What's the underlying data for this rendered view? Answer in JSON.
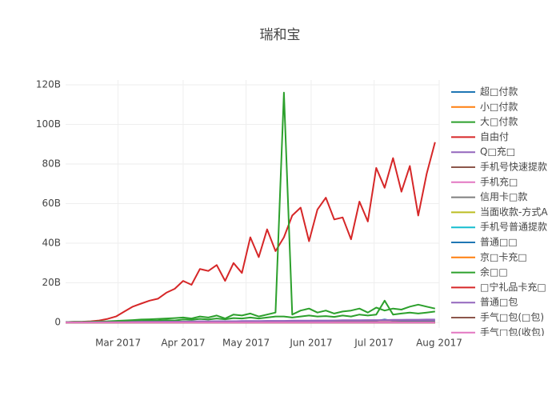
{
  "chart_data": {
    "type": "line",
    "title": "瑞和宝",
    "x": [
      0,
      4,
      8,
      12,
      16,
      20,
      24,
      28,
      32,
      36,
      40,
      44,
      48,
      52,
      56,
      60,
      64,
      68,
      72,
      76,
      80,
      84,
      88,
      92,
      96,
      100,
      104,
      108,
      112,
      116,
      120,
      124,
      128,
      132,
      136,
      140,
      144,
      148,
      152,
      156,
      160,
      164,
      168,
      172,
      176
    ],
    "xlim": [
      0,
      178
    ],
    "xticks": [
      {
        "value": 25,
        "label": "Mar 2017"
      },
      {
        "value": 56,
        "label": "Apr 2017"
      },
      {
        "value": 86,
        "label": "May 2017"
      },
      {
        "value": 117,
        "label": "Jun 2017"
      },
      {
        "value": 147,
        "label": "Jul 2017"
      },
      {
        "value": 178,
        "label": "Aug 2017"
      }
    ],
    "ylim": [
      -2.8,
      122.4
    ],
    "yticks": [
      {
        "value": 0,
        "label": "0"
      },
      {
        "value": 20,
        "label": "20B"
      },
      {
        "value": 40,
        "label": "40B"
      },
      {
        "value": 60,
        "label": "60B"
      },
      {
        "value": 80,
        "label": "80B"
      },
      {
        "value": 100,
        "label": "100B"
      },
      {
        "value": 120,
        "label": "120B"
      }
    ],
    "grid": true,
    "legend": "right",
    "series": [
      {
        "name": "超□付款",
        "color": "#1f77b4",
        "values": [
          0.2,
          0.2,
          0.2,
          0.2,
          0.2,
          0.2,
          0.3,
          0.3,
          0.3,
          0.3,
          0.3,
          0.3,
          0.4,
          0.4,
          0.4,
          0.4,
          0.4,
          0.4,
          0.5,
          0.5,
          0.5,
          0.5,
          0.5,
          0.5,
          0.6,
          0.6,
          0.6,
          0.6,
          0.6,
          0.6,
          0.7,
          0.7,
          0.7,
          0.7,
          0.7,
          0.7,
          0.8,
          0.8,
          1.5,
          0.8,
          0.8,
          0.8,
          0.8,
          0.8,
          0.8
        ]
      },
      {
        "name": "小□付款",
        "color": "#ff7f0e",
        "values": [
          0,
          0,
          0,
          0,
          0,
          0,
          0,
          0,
          0,
          0,
          0.1,
          0.1,
          0.1,
          0.1,
          0.1,
          0.1,
          0.1,
          0.1,
          0.1,
          0.1,
          0.1,
          0.1,
          0.1,
          0.1,
          0.1,
          0.1,
          0.1,
          0.1,
          0.1,
          0.1,
          0.1,
          0.1,
          0.1,
          0.1,
          0.1,
          0.1,
          0.1,
          0.1,
          0.1,
          0.1,
          0.1,
          0.1,
          0.1,
          0.1,
          0.1
        ]
      },
      {
        "name": "大□付款",
        "color": "#2ca02c",
        "values": [
          0.1,
          0.1,
          0.2,
          0.2,
          0.3,
          0.3,
          0.4,
          0.5,
          0.6,
          0.8,
          0.9,
          1.0,
          1.2,
          1.0,
          1.5,
          1.3,
          1.8,
          1.5,
          2.0,
          1.6,
          2.2,
          2.0,
          2.5,
          2.0,
          2.5,
          3.0,
          3.0,
          2.5,
          3.0,
          3.5,
          3.0,
          3.2,
          2.8,
          3.5,
          3.0,
          4.0,
          3.5,
          4.0,
          11.0,
          4.0,
          4.5,
          5.0,
          4.5,
          5.0,
          5.5
        ]
      },
      {
        "name": "自由付",
        "color": "#d62728",
        "values": [
          0.2,
          0.3,
          0.4,
          0.6,
          1.0,
          1.8,
          3.0,
          5.5,
          8.0,
          9.5,
          11,
          12,
          15,
          17,
          21,
          19,
          27,
          26,
          29,
          21,
          30,
          25,
          43,
          33,
          47,
          36,
          43,
          54,
          58,
          41,
          57,
          63,
          52,
          53,
          42,
          61,
          51,
          78,
          68,
          83,
          66,
          79,
          54,
          75,
          91
        ]
      },
      {
        "name": "Q□充□",
        "color": "#9467bd",
        "values": [
          0,
          0,
          0,
          0.1,
          0.1,
          0.1,
          0.2,
          0.2,
          0.2,
          0.3,
          0.3,
          0.3,
          0.4,
          0.4,
          0.4,
          0.5,
          0.5,
          0.5,
          0.6,
          0.6,
          0.6,
          0.7,
          0.7,
          0.7,
          0.8,
          0.8,
          0.8,
          0.9,
          0.9,
          0.9,
          1.0,
          1.0,
          1.0,
          1.1,
          1.1,
          1.1,
          1.2,
          1.2,
          1.2,
          1.3,
          1.3,
          1.4,
          1.4,
          1.5,
          1.5
        ]
      },
      {
        "name": "手机号快速提款",
        "color": "#8c564b",
        "values": [
          0,
          0,
          0,
          0,
          0,
          0,
          0,
          0,
          0,
          0,
          0,
          0,
          0,
          0,
          0,
          0,
          0,
          0,
          0,
          0,
          0,
          0,
          0,
          0,
          0,
          0,
          0,
          0,
          0,
          0,
          0,
          0,
          0,
          0,
          0,
          0,
          0,
          0,
          0,
          0,
          0,
          0,
          0,
          0,
          0
        ]
      },
      {
        "name": "手机充□",
        "color": "#e377c2",
        "values": [
          0,
          0,
          0,
          0,
          0,
          0,
          0,
          0,
          0,
          0,
          0,
          0,
          0,
          0,
          0,
          0,
          0,
          0,
          0,
          0,
          0,
          0,
          0,
          0,
          0,
          0,
          0,
          0,
          0,
          0,
          0,
          0,
          0,
          0,
          0,
          0,
          0,
          0,
          0,
          0,
          0,
          0,
          0,
          0,
          0
        ]
      },
      {
        "name": "信用卡□款",
        "color": "#7f7f7f",
        "values": [
          0,
          0,
          0,
          0,
          0,
          0,
          0,
          0,
          0,
          0,
          0,
          0,
          0,
          0,
          0,
          0,
          0,
          0,
          0,
          0,
          0,
          0,
          0,
          0,
          0,
          0,
          0,
          0,
          0,
          0,
          0,
          0,
          0,
          0,
          0,
          0,
          0,
          0,
          0,
          0,
          0,
          0,
          0,
          0,
          0
        ]
      },
      {
        "name": "当面收款-方式A",
        "color": "#bcbd22",
        "values": [
          0,
          0,
          0,
          0,
          0,
          0,
          0,
          0,
          0,
          0,
          0,
          0,
          0,
          0,
          0,
          0,
          0,
          0,
          0,
          0,
          0,
          0,
          0,
          0,
          0,
          0,
          0,
          0,
          0,
          0,
          0,
          0,
          0,
          0,
          0,
          0,
          0,
          0,
          0,
          0,
          0,
          0,
          0,
          0,
          0
        ]
      },
      {
        "name": "手机号普通提款",
        "color": "#17becf",
        "values": [
          0,
          0,
          0,
          0,
          0,
          0,
          0,
          0,
          0,
          0,
          0,
          0,
          0,
          0,
          0,
          0,
          0,
          0,
          0,
          0,
          0,
          0,
          0,
          0,
          0,
          0,
          0,
          0,
          0,
          0,
          0,
          0,
          0,
          0,
          0,
          0,
          0,
          0,
          0,
          0,
          0,
          0,
          0,
          0,
          0
        ]
      },
      {
        "name": "普通□□",
        "color": "#1f77b4",
        "values": [
          0,
          0,
          0,
          0,
          0,
          0,
          0,
          0,
          0,
          0,
          0,
          0,
          0,
          0,
          0,
          0,
          0,
          0,
          0,
          0,
          0,
          0,
          0,
          0,
          0,
          0,
          0,
          0,
          0,
          0,
          0,
          0,
          0,
          0,
          0,
          0,
          0,
          0,
          0,
          0,
          0,
          0,
          0,
          0,
          0
        ]
      },
      {
        "name": "京□卡充□",
        "color": "#ff7f0e",
        "values": [
          0,
          0,
          0,
          0,
          0,
          0,
          0,
          0,
          0,
          0,
          0,
          0,
          0,
          0,
          0,
          0,
          0,
          0,
          0,
          0,
          0,
          0,
          0,
          0,
          0,
          0,
          0,
          0,
          0,
          0,
          0,
          0,
          0,
          0,
          0,
          0,
          0,
          0,
          0,
          0,
          0,
          0,
          0,
          0,
          0
        ]
      },
      {
        "name": "余□□",
        "color": "#2ca02c",
        "values": [
          0.2,
          0.3,
          0.3,
          0.4,
          0.5,
          0.6,
          0.8,
          1.0,
          1.2,
          1.5,
          1.6,
          1.8,
          2.0,
          2.2,
          2.5,
          2.0,
          3.0,
          2.5,
          3.5,
          2.0,
          4.0,
          3.5,
          4.5,
          3.0,
          4.0,
          5.0,
          116,
          4.0,
          6.0,
          7.0,
          5.0,
          6.0,
          4.5,
          5.5,
          6.0,
          7.0,
          5.0,
          7.5,
          6.0,
          7.0,
          6.5,
          8.0,
          9.0,
          8.0,
          7.0
        ]
      },
      {
        "name": "□宁礼品卡充□",
        "color": "#d62728",
        "values": [
          0,
          0,
          0,
          0,
          0,
          0,
          0,
          0,
          0,
          0,
          0,
          0,
          0,
          0,
          0,
          0,
          0,
          0,
          0,
          0,
          0,
          0,
          0,
          0,
          0,
          0,
          0,
          0,
          0,
          0,
          0,
          0,
          0,
          0,
          0,
          0,
          0,
          0,
          0,
          0,
          0,
          0,
          0,
          0,
          0
        ]
      },
      {
        "name": "普通□包",
        "color": "#9467bd",
        "values": [
          0.1,
          0.1,
          0.1,
          0.1,
          0.2,
          0.2,
          0.2,
          0.2,
          0.3,
          0.3,
          0.3,
          0.3,
          0.4,
          0.4,
          0.4,
          0.4,
          0.5,
          0.5,
          0.5,
          0.5,
          0.6,
          0.6,
          0.6,
          0.6,
          0.7,
          0.7,
          0.7,
          0.7,
          0.8,
          0.8,
          0.8,
          0.8,
          0.9,
          0.9,
          0.9,
          0.9,
          1.0,
          1.0,
          1.0,
          1.0,
          1.2,
          1.2,
          1.2,
          1.2,
          1.2
        ]
      },
      {
        "name": "手气□包(□包)",
        "color": "#8c564b",
        "values": [
          0,
          0,
          0,
          0,
          0,
          0,
          0,
          0,
          0,
          0,
          0,
          0,
          0,
          0,
          0,
          0,
          0,
          0,
          0,
          0,
          0,
          0,
          0,
          0,
          0,
          0,
          0,
          0,
          0,
          0,
          0,
          0,
          0,
          0,
          0,
          0,
          0,
          0,
          0,
          0,
          0,
          0,
          0,
          0,
          0
        ]
      },
      {
        "name": "手气□包(收包)",
        "color": "#e377c2",
        "values": [
          0,
          0,
          0,
          0,
          0,
          0,
          0,
          0,
          0,
          0,
          0,
          0,
          0,
          0,
          0,
          0,
          0,
          0,
          0,
          0,
          0,
          0,
          0,
          0,
          0,
          0,
          0,
          0,
          0,
          0,
          0,
          0,
          0,
          0,
          0,
          0,
          0,
          0,
          0,
          0,
          0,
          0,
          0,
          0,
          0
        ]
      }
    ]
  }
}
